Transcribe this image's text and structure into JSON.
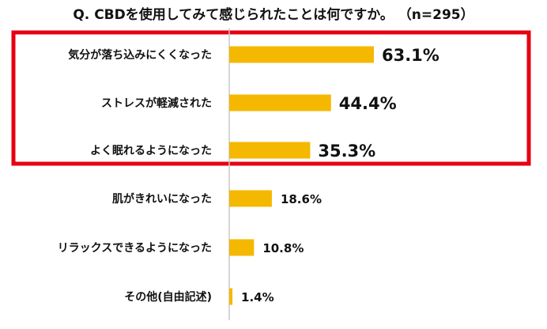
{
  "title": "Q. CBDを使用してみて感じられたことは何ですか。 （n=295）",
  "chart_data": {
    "type": "bar",
    "orientation": "horizontal",
    "title": "Q. CBDを使用してみて感じられたことは何ですか。 （n=295）",
    "categories": [
      "気分が落ち込みにくくなった",
      "ストレスが軽減された",
      "よく眠れるようになった",
      "肌がきれいになった",
      "リラックスできるようになった",
      "その他(自由記述)"
    ],
    "values": [
      63.1,
      44.4,
      35.3,
      18.6,
      10.8,
      1.4
    ],
    "value_labels": [
      "63.1%",
      "44.4%",
      "35.3%",
      "18.6%",
      "10.8%",
      "1.4%"
    ],
    "xlim": [
      0,
      100
    ],
    "grid": false,
    "highlight": {
      "first_n": 3,
      "color": "#e60012"
    },
    "colors": {
      "bar": "#f5b800",
      "axis": "#c8c8c8",
      "highlight_box": "#e60012"
    }
  }
}
